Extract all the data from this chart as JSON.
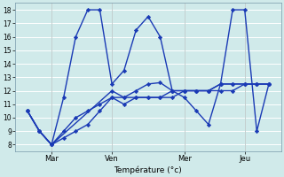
{
  "xlabel": "Température (°c)",
  "ylim": [
    7.5,
    18.5
  ],
  "yticks": [
    8,
    9,
    10,
    11,
    12,
    13,
    14,
    15,
    16,
    17,
    18
  ],
  "bg_color": "#d0eaea",
  "grid_color": "#ffffff",
  "line_color": "#1a3ab5",
  "marker": "D",
  "markersize": 2.2,
  "linewidth": 1.0,
  "xtick_labels": [
    "Mar",
    "Ven",
    "Mer",
    "Jeu"
  ],
  "xtick_positions": [
    3,
    8,
    14,
    19
  ],
  "xlim": [
    0,
    22
  ],
  "lines": [
    {
      "x": [
        1,
        2,
        3,
        4,
        5,
        6,
        7,
        8,
        9,
        10,
        11,
        12,
        13,
        14,
        15,
        16,
        17,
        18,
        19,
        20,
        21
      ],
      "y": [
        10.5,
        9.0,
        8.0,
        11.5,
        16.0,
        18.0,
        18.0,
        12.5,
        13.5,
        16.5,
        17.5,
        16.0,
        12.0,
        11.5,
        10.5,
        9.5,
        12.5,
        18.0,
        18.0,
        9.0,
        12.5
      ]
    },
    {
      "x": [
        1,
        2,
        3,
        8,
        9,
        10,
        11,
        12,
        13,
        14,
        15,
        16,
        17,
        18,
        19,
        20,
        21
      ],
      "y": [
        10.5,
        9.0,
        8.0,
        12.0,
        11.5,
        12.0,
        12.5,
        12.6,
        12.0,
        12.0,
        12.0,
        12.0,
        12.5,
        12.5,
        12.5,
        12.5,
        12.5
      ]
    },
    {
      "x": [
        1,
        2,
        3,
        4,
        5,
        6,
        7,
        8,
        9,
        10,
        11,
        12,
        13,
        14,
        15,
        16,
        17,
        18,
        19,
        20,
        21
      ],
      "y": [
        10.5,
        9.0,
        8.0,
        9.0,
        10.0,
        10.5,
        11.0,
        11.5,
        11.5,
        11.5,
        11.5,
        11.5,
        12.0,
        12.0,
        12.0,
        12.0,
        12.5,
        12.5,
        12.5,
        12.5,
        12.5
      ]
    },
    {
      "x": [
        1,
        2,
        3,
        4,
        5,
        6,
        7,
        8,
        9,
        10,
        11,
        12,
        13,
        14,
        15,
        16,
        17,
        18,
        19,
        20,
        21
      ],
      "y": [
        10.5,
        9.0,
        8.0,
        8.5,
        9.0,
        9.5,
        10.5,
        11.5,
        11.0,
        11.5,
        11.5,
        11.5,
        11.5,
        12.0,
        12.0,
        12.0,
        12.0,
        12.0,
        12.5,
        12.5,
        12.5
      ]
    }
  ]
}
